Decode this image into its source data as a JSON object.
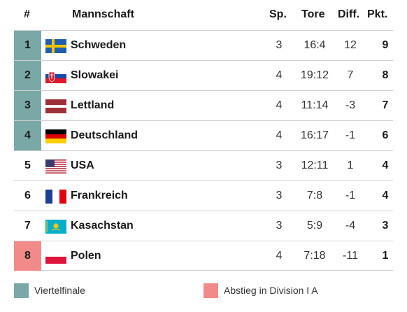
{
  "columns": {
    "rank": "#",
    "team": "Mannschaft",
    "games": "Sp.",
    "goals": "Tore",
    "diff": "Diff.",
    "points": "Pkt."
  },
  "rows": [
    {
      "rank": "1",
      "team": "Schweden",
      "games": "3",
      "goals": "16:4",
      "diff": "12",
      "points": "9",
      "status": "q",
      "flag": "sweden-flag"
    },
    {
      "rank": "2",
      "team": "Slowakei",
      "games": "4",
      "goals": "19:12",
      "diff": "7",
      "points": "8",
      "status": "q",
      "flag": "slovakia-flag"
    },
    {
      "rank": "3",
      "team": "Lettland",
      "games": "4",
      "goals": "11:14",
      "diff": "-3",
      "points": "7",
      "status": "q",
      "flag": "latvia-flag"
    },
    {
      "rank": "4",
      "team": "Deutschland",
      "games": "4",
      "goals": "16:17",
      "diff": "-1",
      "points": "6",
      "status": "q",
      "flag": "germany-flag"
    },
    {
      "rank": "5",
      "team": "USA",
      "games": "3",
      "goals": "12:11",
      "diff": "1",
      "points": "4",
      "status": "",
      "flag": "usa-flag"
    },
    {
      "rank": "6",
      "team": "Frankreich",
      "games": "3",
      "goals": "7:8",
      "diff": "-1",
      "points": "4",
      "status": "",
      "flag": "france-flag"
    },
    {
      "rank": "7",
      "team": "Kasachstan",
      "games": "3",
      "goals": "5:9",
      "diff": "-4",
      "points": "3",
      "status": "",
      "flag": "kazakhstan-flag"
    },
    {
      "rank": "8",
      "team": "Polen",
      "games": "4",
      "goals": "7:18",
      "diff": "-11",
      "points": "1",
      "status": "r",
      "flag": "poland-flag"
    }
  ],
  "legend": {
    "quarterfinal": "Viertelfinale",
    "relegation": "Abstieg in Division I A"
  },
  "colors": {
    "quarterfinal": "#7aa8a7",
    "relegation": "#f28a8a"
  }
}
